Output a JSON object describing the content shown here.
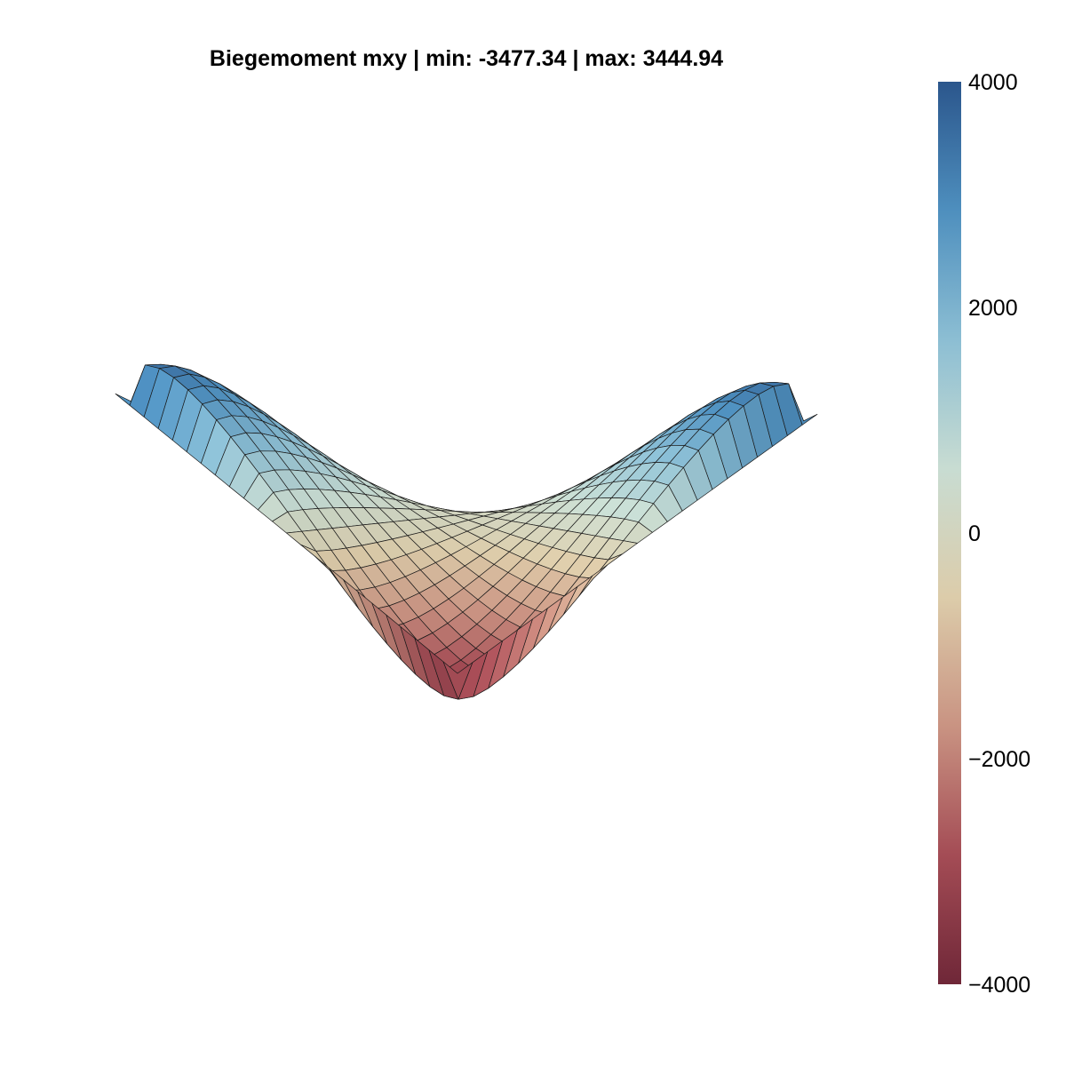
{
  "chart_data": {
    "type": "surface",
    "title": "Biegemoment mxy | min: -3477.34 | max: 3444.94",
    "value_min": -3477.34,
    "value_max": 3444.94,
    "grid": "off",
    "axes": "hidden",
    "surface_grid_resolution": 24,
    "surface_shape": "saddle-like: positive lobes at left and right corners, negative lobes at front and back corners, zero at center",
    "colorbar": {
      "position": "right",
      "limits": [
        -4000,
        4000
      ],
      "ticks": [
        4000,
        2000,
        0,
        -2000,
        -4000
      ],
      "tick_labels": [
        "4000",
        "2000",
        "0",
        "−2000",
        "−4000"
      ],
      "colors": [
        "#6f2738",
        "#a44c55",
        "#c99382",
        "#dcccaa",
        "#c8dcd2",
        "#8cbed3",
        "#4e8fbe",
        "#2b568c"
      ]
    }
  }
}
